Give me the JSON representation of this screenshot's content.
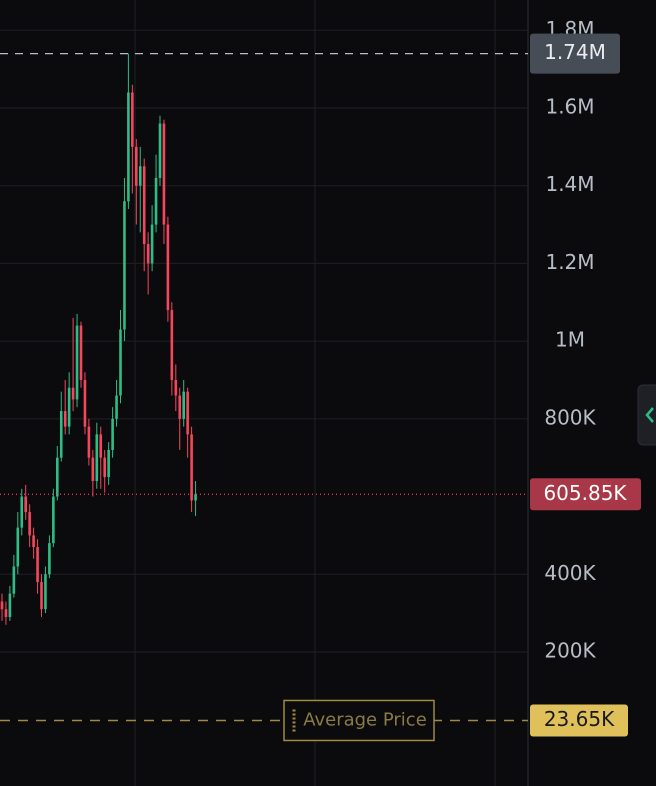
{
  "chart_data": {
    "type": "candlestick",
    "up_color": "#2ebd85",
    "down_color": "#f6465d",
    "grid": true,
    "ylim": [
      -145000,
      1878000
    ],
    "yticks": [
      {
        "value": 200000,
        "label": "200K"
      },
      {
        "value": 400000,
        "label": "400K"
      },
      {
        "value": 800000,
        "label": "800K"
      },
      {
        "value": 1000000,
        "label": "1M"
      },
      {
        "value": 1200000,
        "label": "1.2M"
      },
      {
        "value": 1400000,
        "label": "1.4M"
      },
      {
        "value": 1600000,
        "label": "1.6M"
      },
      {
        "value": 1800000,
        "label": "1.8M"
      }
    ],
    "open": [
      330000,
      310000,
      290000,
      350000,
      420000,
      520000,
      600000,
      560000,
      500000,
      470000,
      380000,
      310000,
      400000,
      480000,
      600000,
      700000,
      820000,
      780000,
      880000,
      850000,
      1040000,
      900000,
      780000,
      700000,
      640000,
      760000,
      700000,
      650000,
      720000,
      800000,
      860000,
      1030000,
      1360000,
      1640000,
      1500000,
      1400000,
      1450000,
      1250000,
      1200000,
      1300000,
      1420000,
      1560000,
      1300000,
      1080000,
      900000,
      860000,
      800000,
      870000,
      760000,
      590000
    ],
    "high": [
      350000,
      330000,
      370000,
      450000,
      560000,
      620000,
      630000,
      580000,
      520000,
      490000,
      400000,
      420000,
      500000,
      620000,
      730000,
      870000,
      900000,
      920000,
      1060000,
      1070000,
      1050000,
      920000,
      800000,
      720000,
      790000,
      780000,
      720000,
      740000,
      830000,
      900000,
      1080000,
      1420000,
      1740000,
      1660000,
      1520000,
      1500000,
      1470000,
      1280000,
      1350000,
      1480000,
      1580000,
      1570000,
      1320000,
      1100000,
      940000,
      880000,
      900000,
      880000,
      780000,
      640000
    ],
    "low": [
      280000,
      270000,
      280000,
      340000,
      400000,
      500000,
      540000,
      470000,
      440000,
      350000,
      290000,
      300000,
      390000,
      470000,
      590000,
      690000,
      760000,
      760000,
      820000,
      830000,
      880000,
      760000,
      680000,
      600000,
      620000,
      620000,
      610000,
      630000,
      700000,
      780000,
      840000,
      1000000,
      1340000,
      1380000,
      1300000,
      1280000,
      1180000,
      1120000,
      1180000,
      1280000,
      1400000,
      1250000,
      1050000,
      860000,
      820000,
      720000,
      780000,
      700000,
      560000,
      550000
    ],
    "close": [
      310000,
      290000,
      350000,
      420000,
      520000,
      600000,
      560000,
      500000,
      470000,
      380000,
      310000,
      400000,
      480000,
      600000,
      700000,
      820000,
      780000,
      880000,
      850000,
      1040000,
      900000,
      780000,
      700000,
      640000,
      760000,
      700000,
      650000,
      720000,
      800000,
      860000,
      1030000,
      1360000,
      1640000,
      1500000,
      1400000,
      1450000,
      1250000,
      1200000,
      1300000,
      1420000,
      1560000,
      1300000,
      1080000,
      900000,
      860000,
      800000,
      870000,
      760000,
      590000,
      605850
    ],
    "high_line": {
      "value": 1740000,
      "label": "1.74M"
    },
    "last_price": {
      "value": 605850,
      "label": "605.85K"
    },
    "average_price": {
      "name": "Average Price",
      "value": 23650,
      "label": "23.65K"
    }
  }
}
